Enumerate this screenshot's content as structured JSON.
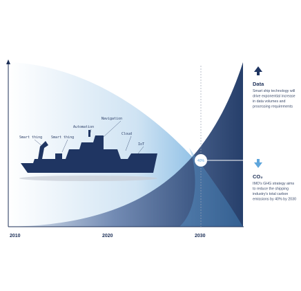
{
  "axis": {
    "ticks": [
      "2010",
      "2020",
      "2030"
    ]
  },
  "marker": {
    "label": "40%"
  },
  "ship_labels": [
    "Smart thing",
    "Smart thing",
    "Automation",
    "Navigation",
    "Cloud",
    "IoT"
  ],
  "legend": [
    {
      "title": "Data",
      "lines": [
        "Smart ship technology will",
        "drive exponential increase",
        "in data volumes and",
        "processing requirements"
      ]
    },
    {
      "title": "CO₂",
      "lines": [
        "IMO's GHG strategy aims",
        "to reduce the shipping",
        "industry's total carbon",
        "emissions by 40% by 2030"
      ]
    }
  ]
}
